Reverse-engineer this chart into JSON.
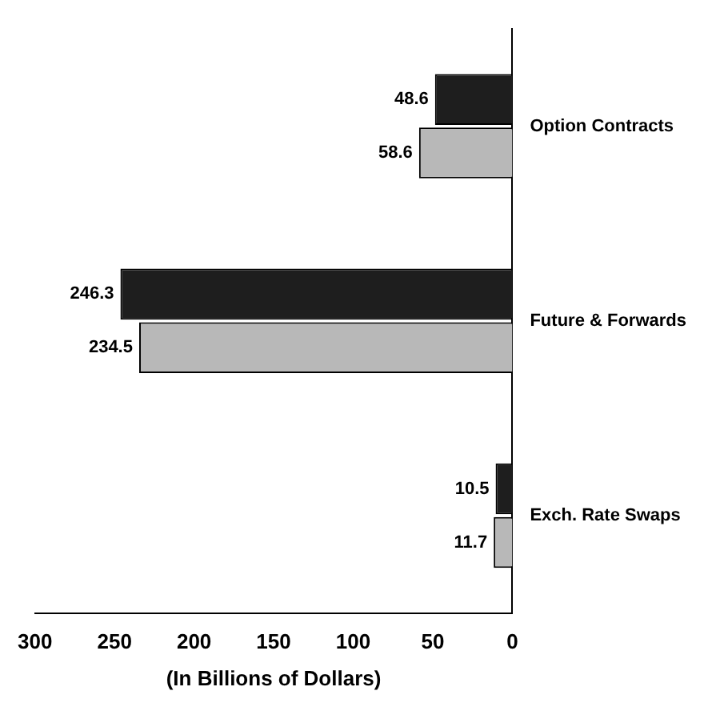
{
  "chart_data": {
    "type": "bar",
    "orientation": "horizontal",
    "categories": [
      "Option Contracts",
      "Future & Forwards",
      "Exch. Rate Swaps"
    ],
    "series": [
      {
        "color": "#1e1e1e",
        "values": [
          48.6,
          246.3,
          10.5
        ]
      },
      {
        "color": "#b8b8b8",
        "values": [
          58.6,
          234.5,
          11.7
        ]
      }
    ],
    "xlabel": "(In Billions of Dollars)",
    "xlim": [
      300,
      0
    ],
    "xticks": [
      300,
      250,
      200,
      150,
      100,
      50,
      0
    ],
    "data_labels": true,
    "grid": false,
    "legend": false
  }
}
